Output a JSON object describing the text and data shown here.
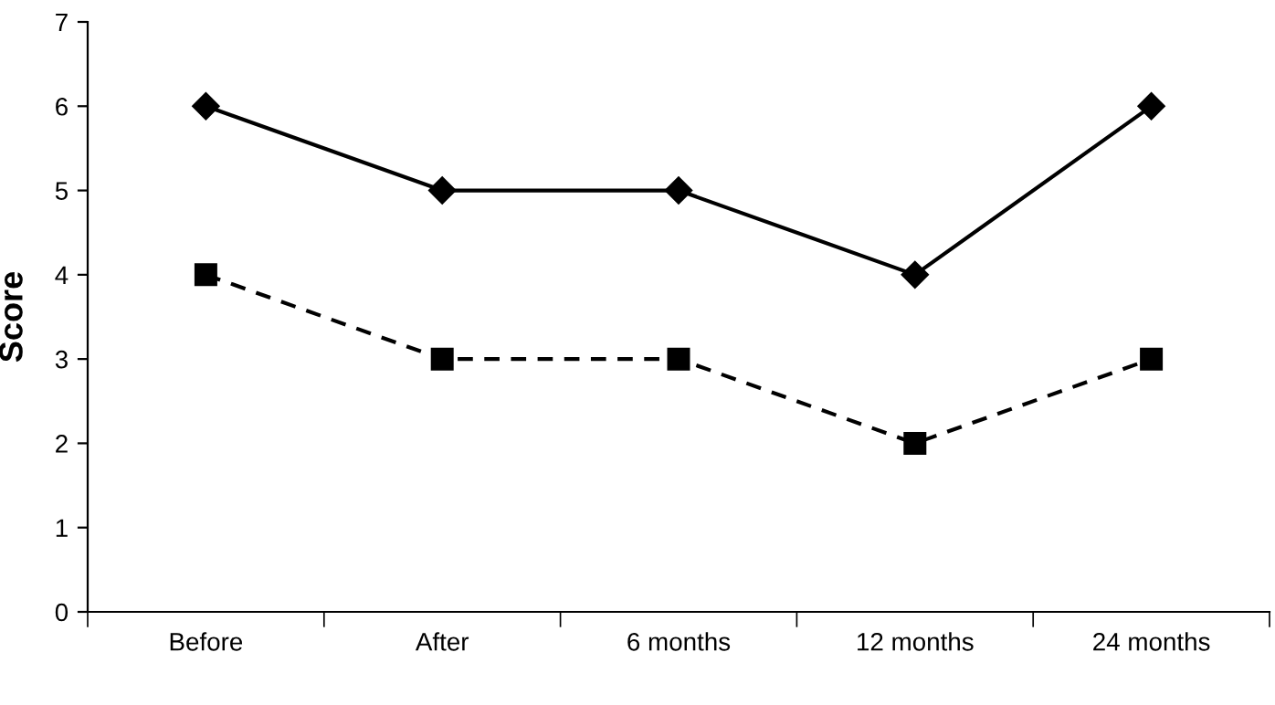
{
  "chart_data": {
    "type": "line",
    "ylabel": "Score",
    "categories": [
      "Before",
      "After",
      "6 months",
      "12 months",
      "24 months"
    ],
    "series": [
      {
        "color": "#000000",
        "marker": "diamond",
        "line_style": "solid",
        "values": [
          6,
          5,
          5,
          4,
          6
        ]
      },
      {
        "color": "#000000",
        "marker": "square",
        "line_style": "dashed",
        "values": [
          4,
          3,
          3,
          2,
          3
        ]
      }
    ],
    "ylim": [
      0,
      7
    ],
    "yticks": [
      0,
      1,
      2,
      3,
      4,
      5,
      6,
      7
    ],
    "grid": false,
    "legend": false
  }
}
